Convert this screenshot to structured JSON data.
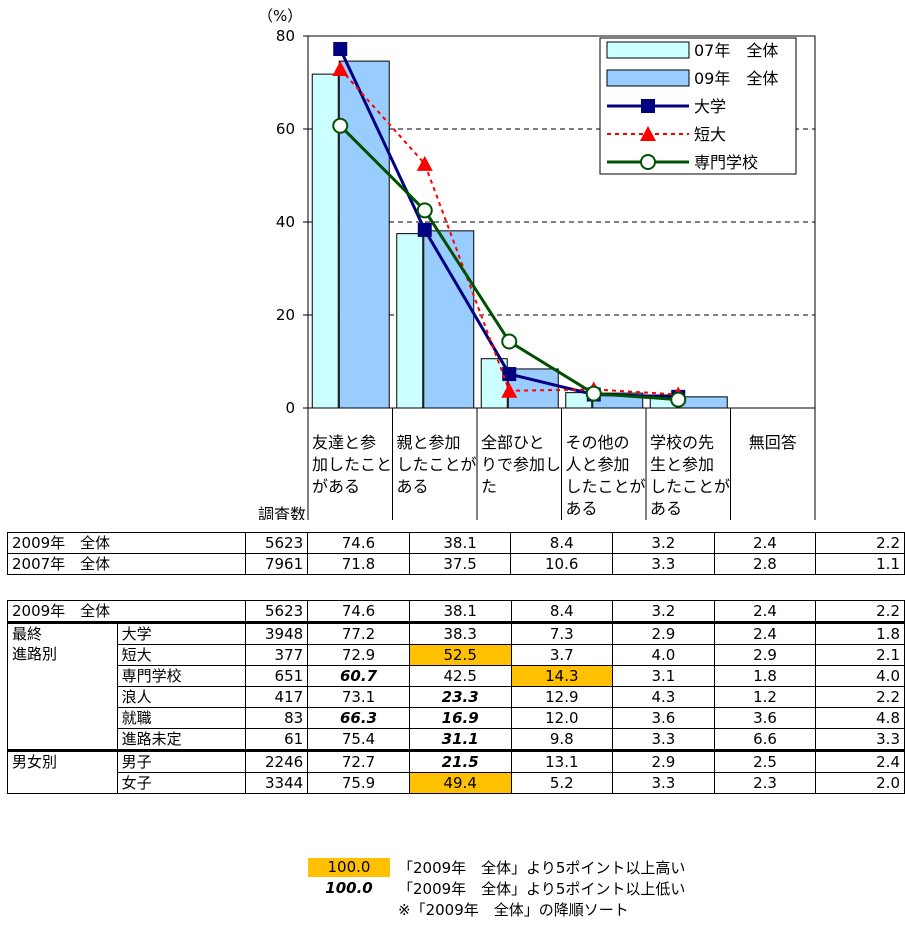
{
  "chart_data": {
    "type": "bar",
    "unit_label": "（%）",
    "ylim": [
      0,
      80
    ],
    "yticks": [
      0,
      20,
      40,
      60,
      80
    ],
    "categories": [
      "友達と参加したことがある",
      "親と参加したことがある",
      "全部ひとりで参加した",
      "その他の人と参加したことがある",
      "学校の先生と参加したことがある"
    ],
    "category_lines": [
      [
        "友達と参",
        "加したこと",
        "がある"
      ],
      [
        "親と参加",
        "したことが",
        "ある"
      ],
      [
        "全部ひと",
        "りで参加し",
        "た"
      ],
      [
        "その他の",
        "人と参加",
        "したことが",
        "ある"
      ],
      [
        "学校の先",
        "生と参加",
        "したことが",
        "ある"
      ]
    ],
    "bar_series": [
      {
        "name": "07年　全体",
        "values": [
          71.8,
          37.5,
          10.6,
          3.3,
          2.8
        ],
        "color": "#ccffff"
      },
      {
        "name": "09年　全体",
        "values": [
          74.6,
          38.1,
          8.4,
          3.2,
          2.4
        ],
        "color": "#99ccff"
      }
    ],
    "line_series": [
      {
        "name": "大学",
        "values": [
          77.2,
          38.3,
          7.3,
          2.9,
          2.4
        ],
        "color": "#000080",
        "style": "solid",
        "marker": "square"
      },
      {
        "name": "短大",
        "values": [
          72.9,
          52.5,
          3.7,
          4.0,
          2.9
        ],
        "color": "#ff0000",
        "style": "dashed",
        "marker": "triangle"
      },
      {
        "name": "専門学校",
        "values": [
          60.7,
          42.5,
          14.3,
          3.1,
          1.8
        ],
        "color": "#005000",
        "style": "solid",
        "marker": "circle"
      }
    ],
    "legend_position": "top-right",
    "grid": "dashed horizontal"
  },
  "table": {
    "header": {
      "count": "調査数",
      "noanswer": "無回答"
    },
    "top_rows": [
      {
        "label": "2009年　全体",
        "n": "5623",
        "v": [
          "74.6",
          "38.1",
          "8.4",
          "3.2",
          "2.4",
          "2.2"
        ]
      },
      {
        "label": "2007年　全体",
        "n": "7961",
        "v": [
          "71.8",
          "37.5",
          "10.6",
          "3.3",
          "2.8",
          "1.1"
        ]
      }
    ],
    "total_row": {
      "label": "2009年　全体",
      "n": "5623",
      "v": [
        "74.6",
        "38.1",
        "8.4",
        "3.2",
        "2.4",
        "2.2"
      ]
    },
    "groups": [
      {
        "label": "最終進路別",
        "label_lines": [
          "最終",
          "進路別"
        ],
        "rows": [
          {
            "label": "大学",
            "n": "3948",
            "v": [
              "77.2",
              "38.3",
              "7.3",
              "2.9",
              "2.4",
              "1.8"
            ],
            "hl": [
              "",
              "",
              "",
              "",
              "",
              ""
            ]
          },
          {
            "label": "短大",
            "n": "377",
            "v": [
              "72.9",
              "52.5",
              "3.7",
              "4.0",
              "2.9",
              "2.1"
            ],
            "hl": [
              "",
              "hi",
              "",
              "",
              "",
              ""
            ]
          },
          {
            "label": "専門学校",
            "n": "651",
            "v": [
              "60.7",
              "42.5",
              "14.3",
              "3.1",
              "1.8",
              "4.0"
            ],
            "hl": [
              "lo",
              "",
              "hi",
              "",
              "",
              ""
            ]
          },
          {
            "label": "浪人",
            "n": "417",
            "v": [
              "73.1",
              "23.3",
              "12.9",
              "4.3",
              "1.2",
              "2.2"
            ],
            "hl": [
              "",
              "lo",
              "",
              "",
              "",
              ""
            ]
          },
          {
            "label": "就職",
            "n": "83",
            "v": [
              "66.3",
              "16.9",
              "12.0",
              "3.6",
              "3.6",
              "4.8"
            ],
            "hl": [
              "lo",
              "lo",
              "",
              "",
              "",
              ""
            ]
          },
          {
            "label": "進路未定",
            "n": "61",
            "v": [
              "75.4",
              "31.1",
              "9.8",
              "3.3",
              "6.6",
              "3.3"
            ],
            "hl": [
              "",
              "lo",
              "",
              "",
              "",
              ""
            ]
          }
        ]
      },
      {
        "label": "男女別",
        "label_lines": [
          "男女別"
        ],
        "rows": [
          {
            "label": "男子",
            "n": "2246",
            "v": [
              "72.7",
              "21.5",
              "13.1",
              "2.9",
              "2.5",
              "2.4"
            ],
            "hl": [
              "",
              "lo",
              "",
              "",
              "",
              ""
            ]
          },
          {
            "label": "女子",
            "n": "3344",
            "v": [
              "75.9",
              "49.4",
              "5.2",
              "3.3",
              "2.3",
              "2.0"
            ],
            "hl": [
              "",
              "hi",
              "",
              "",
              "",
              ""
            ]
          }
        ]
      }
    ]
  },
  "notes": {
    "high_key": "100.0",
    "high_text": "「2009年　全体」より5ポイント以上高い",
    "low_key": "100.0",
    "low_text": "「2009年　全体」より5ポイント以上低い",
    "sort_text": "※「2009年　全体」の降順ソート"
  }
}
